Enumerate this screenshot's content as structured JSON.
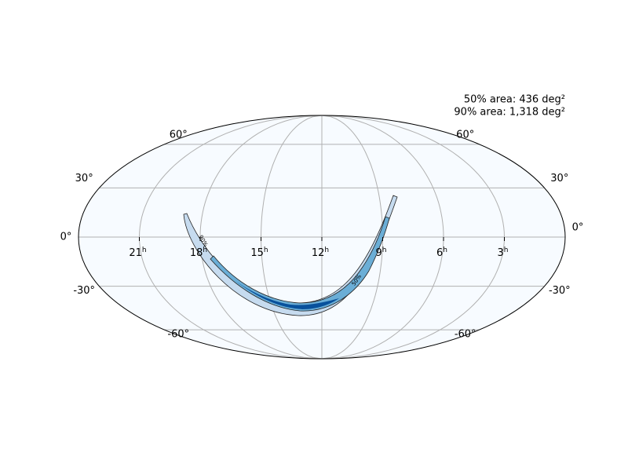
{
  "map": {
    "projection": "mollweide",
    "areas": [
      "50% area: 436 deg²",
      "90% area: 1,318 deg²"
    ],
    "ra_ticks": [
      {
        "value": 21,
        "label": "21",
        "unit": "h"
      },
      {
        "value": 18,
        "label": "18",
        "unit": "h"
      },
      {
        "value": 15,
        "label": "15",
        "unit": "h"
      },
      {
        "value": 12,
        "label": "12",
        "unit": "h"
      },
      {
        "value": 9,
        "label": "9",
        "unit": "h"
      },
      {
        "value": 6,
        "label": "6",
        "unit": "h"
      },
      {
        "value": 3,
        "label": "3",
        "unit": "h"
      }
    ],
    "dec_ticks": [
      {
        "value": 60,
        "label": "60°"
      },
      {
        "value": 30,
        "label": "30°"
      },
      {
        "value": 0,
        "label": "0°"
      },
      {
        "value": -30,
        "label": "-30°"
      },
      {
        "value": -60,
        "label": "-60°"
      }
    ],
    "contour_labels": [
      "90%",
      "50%"
    ]
  }
}
